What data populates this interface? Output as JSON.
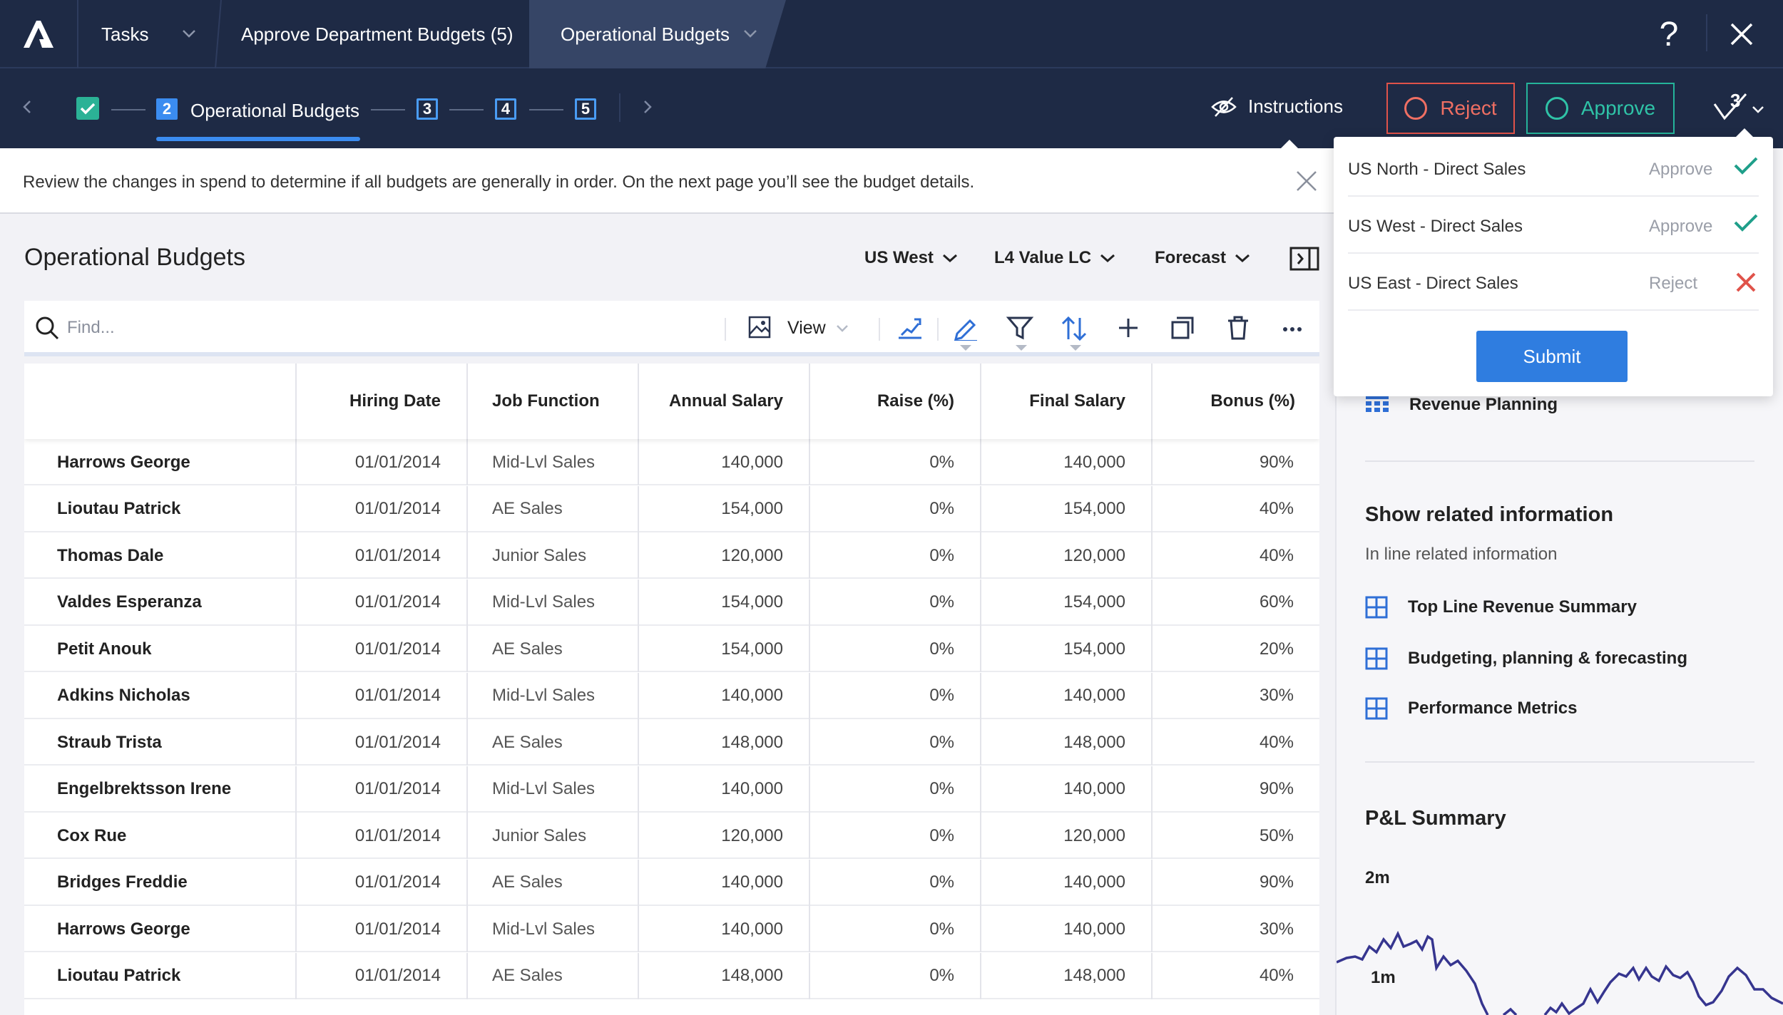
{
  "header": {
    "tasks_label": "Tasks",
    "breadcrumb_parent": "Approve Department Budgets (5)",
    "breadcrumb_current": "Operational Budgets",
    "help_symbol": "?"
  },
  "steps": {
    "active_number": "2",
    "active_label": "Operational Budgets",
    "numbers": [
      "3",
      "4",
      "5"
    ],
    "instructions_label": "Instructions",
    "reject_label": "Reject",
    "approve_label": "Approve",
    "counter": "3"
  },
  "banner": {
    "text": "Review the changes in spend to determine if all budgets are generally in order. On the next page you’ll see the budget details."
  },
  "main": {
    "title": "Operational Budgets",
    "filters": [
      "US West",
      "L4 Value LC",
      "Forecast"
    ],
    "search_placeholder": "Find...",
    "view_label": "View"
  },
  "table": {
    "columns": [
      "",
      "Hiring Date",
      "Job Function",
      "Annual Salary",
      "Raise (%)",
      "Final Salary",
      "Bonus (%)"
    ],
    "rows": [
      [
        "Harrows George",
        "01/01/2014",
        "Mid-Lvl Sales",
        "140,000",
        "0%",
        "140,000",
        "90%"
      ],
      [
        "Lioutau Patrick",
        "01/01/2014",
        "AE Sales",
        "154,000",
        "0%",
        "154,000",
        "40%"
      ],
      [
        "Thomas Dale",
        "01/01/2014",
        "Junior Sales",
        "120,000",
        "0%",
        "120,000",
        "40%"
      ],
      [
        "Valdes Esperanza",
        "01/01/2014",
        "Mid-Lvl Sales",
        "154,000",
        "0%",
        "154,000",
        "60%"
      ],
      [
        "Petit Anouk",
        "01/01/2014",
        "AE Sales",
        "154,000",
        "0%",
        "154,000",
        "20%"
      ],
      [
        "Adkins Nicholas",
        "01/01/2014",
        "Mid-Lvl Sales",
        "140,000",
        "0%",
        "140,000",
        "30%"
      ],
      [
        "Straub Trista",
        "01/01/2014",
        "AE Sales",
        "148,000",
        "0%",
        "148,000",
        "40%"
      ],
      [
        "Engelbrektsson Irene",
        "01/01/2014",
        "Mid-Lvl Sales",
        "140,000",
        "0%",
        "140,000",
        "90%"
      ],
      [
        "Cox Rue",
        "01/01/2014",
        "Junior Sales",
        "120,000",
        "0%",
        "120,000",
        "50%"
      ],
      [
        "Bridges Freddie",
        "01/01/2014",
        "AE Sales",
        "140,000",
        "0%",
        "140,000",
        "90%"
      ],
      [
        "Harrows George",
        "01/01/2014",
        "Mid-Lvl Sales",
        "140,000",
        "0%",
        "140,000",
        "30%"
      ],
      [
        "Lioutau Patrick",
        "01/01/2014",
        "AE Sales",
        "148,000",
        "0%",
        "148,000",
        "40%"
      ]
    ]
  },
  "side": {
    "top_link": "Revenue Planning",
    "related_heading": "Show related information",
    "related_sub": "In line related information",
    "related_links": [
      "Top Line Revenue Summary",
      "Budgeting, planning & forecasting",
      "Performance Metrics"
    ],
    "pl_heading": "P&L Summary",
    "chart_labels": [
      "2m",
      "1m"
    ]
  },
  "decisions": {
    "rows": [
      {
        "name": "US North - Direct Sales",
        "status": "Approve",
        "mark": "check-icon"
      },
      {
        "name": "US West - Direct Sales",
        "status": "Approve",
        "mark": "check-icon"
      },
      {
        "name": "US East - Direct Sales",
        "status": "Reject",
        "mark": "x-icon"
      }
    ],
    "submit_label": "Submit"
  },
  "colors": {
    "nav_bg": "#1e2a45",
    "accent_blue": "#2f7de0",
    "approve_green": "#25b49a",
    "reject_red": "#e0534a"
  }
}
